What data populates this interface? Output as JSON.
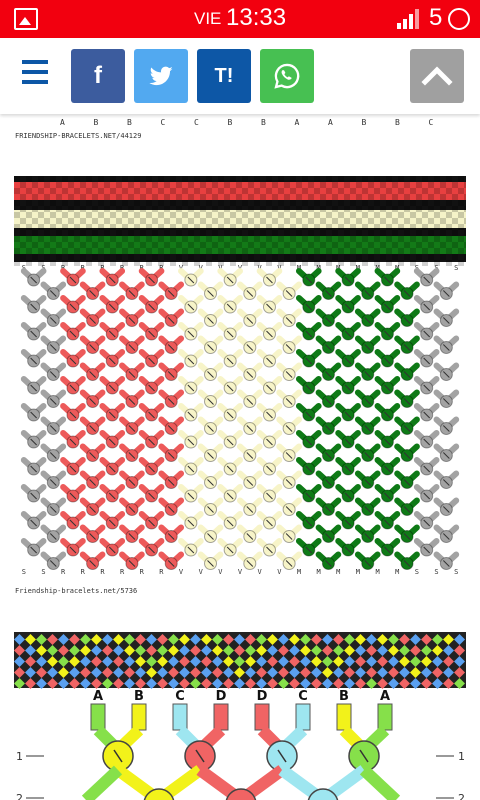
{
  "status_bar": {
    "day": "VIE",
    "time": "13:33",
    "battery_level": "5"
  },
  "toolbar": {
    "menu_icon": "hamburger-menu-icon",
    "share_buttons": [
      {
        "name": "facebook",
        "label": "f",
        "color": "#3c5c9e"
      },
      {
        "name": "twitter",
        "icon": "twitter-bird-icon",
        "color": "#52a9f0"
      },
      {
        "name": "tuenti",
        "label": "T!",
        "color": "#0d57a6"
      },
      {
        "name": "whatsapp",
        "icon": "whatsapp-icon",
        "color": "#47c052"
      }
    ],
    "scroll_top_icon": "chevron-up-icon"
  },
  "pattern1": {
    "bottom_letters": [
      "A",
      "B",
      "B",
      "C",
      "C",
      "B",
      "B",
      "A",
      "A",
      "B",
      "B",
      "C"
    ],
    "url": "FRIENDSHIP-BRACELETS.NET/44129"
  },
  "pattern2": {
    "letters_top": [
      "S",
      "S",
      "R",
      "R",
      "R",
      "R",
      "R",
      "R",
      "V",
      "V",
      "V",
      "V",
      "V",
      "V",
      "M",
      "M",
      "M",
      "M",
      "M",
      "M",
      "S",
      "S",
      "S"
    ],
    "letters_bottom": [
      "S",
      "S",
      "R",
      "R",
      "R",
      "R",
      "R",
      "R",
      "V",
      "V",
      "V",
      "V",
      "V",
      "V",
      "M",
      "M",
      "M",
      "M",
      "M",
      "M",
      "S",
      "S",
      "S"
    ],
    "url": "Friendship-bracelets.net/5736",
    "colors": {
      "gray": "#a3a3a3",
      "red": "#ed5a5a",
      "cream": "#f7f4c8",
      "green": "#0e7a16"
    }
  },
  "pattern3": {
    "letters": [
      "A",
      "B",
      "C",
      "D",
      "D",
      "C",
      "B",
      "A"
    ],
    "row_labels": [
      "1",
      "2"
    ],
    "colors": {
      "yellow": "#f2f21a",
      "green": "#86e04a",
      "red": "#f06464",
      "cyan": "#9ee6f0",
      "blue": "#5aa0f0"
    }
  }
}
